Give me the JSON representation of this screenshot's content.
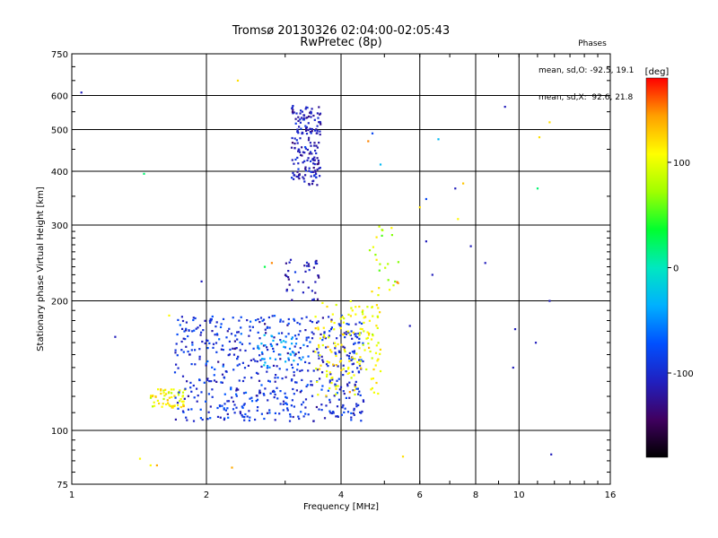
{
  "chart_data": {
    "type": "scatter",
    "title": "Tromsø 20130326 02:04:00-02:05:43",
    "subtitle": "RwPretec (8p)",
    "xlabel": "Frequency [MHz]",
    "ylabel": "Stationary phase Virtual Height [km]",
    "x_scale": "log",
    "y_scale": "log",
    "xlim": [
      1,
      16
    ],
    "ylim": [
      75,
      750
    ],
    "x_ticks": [
      1,
      2,
      4,
      6,
      8,
      10,
      16
    ],
    "y_ticks": [
      75,
      100,
      200,
      300,
      400,
      500,
      600,
      750
    ],
    "grid": true,
    "phase_stats": {
      "heading": "Phases",
      "line_o": "mean, sd,O: -92.5, 19.1",
      "line_x": "mean, sd,X:  92.6, 21.8"
    },
    "colorbar": {
      "label": "[deg]",
      "ticks": [
        100,
        0,
        -100
      ],
      "range": [
        -180,
        180
      ],
      "colormap": [
        "#000000",
        "#400060",
        "#2020c0",
        "#0050ff",
        "#00b0ff",
        "#00e8c0",
        "#00ff30",
        "#a0ff00",
        "#ffff00",
        "#ffa000",
        "#ff0000"
      ]
    },
    "point_groups": [
      {
        "name": "",
        "x_range": [
          3.1,
          3.6
        ],
        "y_range": [
          370,
          570
        ],
        "phase_mean": -110,
        "phase_spread": 20,
        "count": 180
      },
      {
        "name": "",
        "x_range": [
          1.5,
          1.8
        ],
        "y_range": [
          113,
          125
        ],
        "phase_mean": 110,
        "phase_spread": 30,
        "count": 60
      },
      {
        "name": "",
        "x_range": [
          1.7,
          4.5
        ],
        "y_range": [
          105,
          185
        ],
        "phase_mean": -95,
        "phase_spread": 25,
        "count": 600
      },
      {
        "name": "",
        "x_range": [
          3.5,
          4.9
        ],
        "y_range": [
          120,
          200
        ],
        "phase_mean": 110,
        "phase_spread": 25,
        "count": 150
      },
      {
        "name": "",
        "x_range": [
          2.6,
          3.3
        ],
        "y_range": [
          140,
          170
        ],
        "phase_mean": -40,
        "phase_spread": 20,
        "count": 40
      },
      {
        "name": "",
        "x_range": [
          3.0,
          3.6
        ],
        "y_range": [
          200,
          250
        ],
        "phase_mean": -110,
        "phase_spread": 25,
        "count": 40
      },
      {
        "name": "",
        "x_range": [
          4.6,
          5.4
        ],
        "y_range": [
          200,
          300
        ],
        "phase_mean": 90,
        "phase_spread": 60,
        "count": 25
      }
    ],
    "isolated_points": [
      {
        "x": 1.05,
        "y": 610,
        "phase": -110
      },
      {
        "x": 1.25,
        "y": 165,
        "phase": -110
      },
      {
        "x": 1.45,
        "y": 395,
        "phase": 20
      },
      {
        "x": 1.42,
        "y": 86,
        "phase": 110
      },
      {
        "x": 1.5,
        "y": 83,
        "phase": 110
      },
      {
        "x": 1.55,
        "y": 83,
        "phase": 140
      },
      {
        "x": 1.65,
        "y": 185,
        "phase": 110
      },
      {
        "x": 1.95,
        "y": 222,
        "phase": -110
      },
      {
        "x": 2.28,
        "y": 82,
        "phase": 140
      },
      {
        "x": 2.35,
        "y": 650,
        "phase": 120
      },
      {
        "x": 2.7,
        "y": 240,
        "phase": 30
      },
      {
        "x": 2.8,
        "y": 245,
        "phase": 150
      },
      {
        "x": 4.6,
        "y": 470,
        "phase": 150
      },
      {
        "x": 4.7,
        "y": 490,
        "phase": -80
      },
      {
        "x": 4.9,
        "y": 415,
        "phase": -30
      },
      {
        "x": 5.5,
        "y": 87,
        "phase": 120
      },
      {
        "x": 5.7,
        "y": 175,
        "phase": -110
      },
      {
        "x": 6.0,
        "y": 330,
        "phase": 120
      },
      {
        "x": 6.2,
        "y": 345,
        "phase": -80
      },
      {
        "x": 6.2,
        "y": 275,
        "phase": -110
      },
      {
        "x": 6.4,
        "y": 230,
        "phase": -110
      },
      {
        "x": 6.6,
        "y": 475,
        "phase": -30
      },
      {
        "x": 7.2,
        "y": 365,
        "phase": -110
      },
      {
        "x": 7.3,
        "y": 310,
        "phase": 110
      },
      {
        "x": 7.5,
        "y": 375,
        "phase": 130
      },
      {
        "x": 7.8,
        "y": 268,
        "phase": -110
      },
      {
        "x": 8.4,
        "y": 245,
        "phase": -110
      },
      {
        "x": 9.3,
        "y": 565,
        "phase": -110
      },
      {
        "x": 9.7,
        "y": 140,
        "phase": -110
      },
      {
        "x": 9.8,
        "y": 172,
        "phase": -110
      },
      {
        "x": 10.9,
        "y": 160,
        "phase": -110
      },
      {
        "x": 11.0,
        "y": 365,
        "phase": 20
      },
      {
        "x": 11.1,
        "y": 480,
        "phase": 120
      },
      {
        "x": 11.7,
        "y": 520,
        "phase": 120
      },
      {
        "x": 11.7,
        "y": 200,
        "phase": -110
      },
      {
        "x": 11.8,
        "y": 88,
        "phase": -110
      }
    ]
  }
}
